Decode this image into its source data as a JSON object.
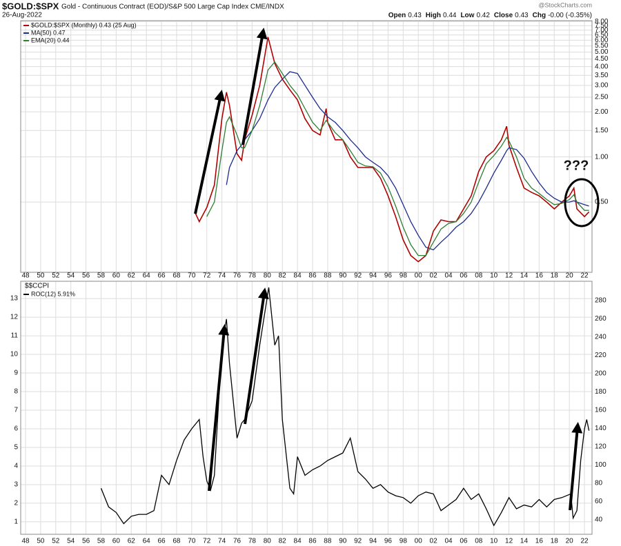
{
  "header": {
    "symbol": "$GOLD:$SPX",
    "description": "Gold - Continuous Contract (EOD)/S&P 500 Large Cap Index CME/INDX",
    "date": "26-Aug-2022",
    "watermark": "@StockCharts.com",
    "stats": [
      [
        "Open",
        "0.43"
      ],
      [
        "High",
        "0.44"
      ],
      [
        "Low",
        "0.42"
      ],
      [
        "Close",
        "0.43"
      ],
      [
        "Chg",
        "-0.00 (-0.35%)"
      ]
    ]
  },
  "chart_data": [
    {
      "type": "line",
      "log_y": true,
      "grid": true,
      "yaxis_side": "right",
      "annotation": "???",
      "xlim": [
        1947.36,
        2023.0
      ],
      "xticks": [
        {
          "value": 1948,
          "label": "48"
        },
        {
          "value": 1950,
          "label": "50"
        },
        {
          "value": 1952,
          "label": "52"
        },
        {
          "value": 1954,
          "label": "54"
        },
        {
          "value": 1956,
          "label": "56"
        },
        {
          "value": 1958,
          "label": "58"
        },
        {
          "value": 1960,
          "label": "60"
        },
        {
          "value": 1962,
          "label": "62"
        },
        {
          "value": 1964,
          "label": "64"
        },
        {
          "value": 1966,
          "label": "66"
        },
        {
          "value": 1968,
          "label": "68"
        },
        {
          "value": 1970,
          "label": "70"
        },
        {
          "value": 1972,
          "label": "72"
        },
        {
          "value": 1974,
          "label": "74"
        },
        {
          "value": 1976,
          "label": "76"
        },
        {
          "value": 1978,
          "label": "78"
        },
        {
          "value": 1980,
          "label": "80"
        },
        {
          "value": 1982,
          "label": "82"
        },
        {
          "value": 1984,
          "label": "84"
        },
        {
          "value": 1986,
          "label": "86"
        },
        {
          "value": 1988,
          "label": "88"
        },
        {
          "value": 1990,
          "label": "90"
        },
        {
          "value": 1992,
          "label": "92"
        },
        {
          "value": 1994,
          "label": "94"
        },
        {
          "value": 1996,
          "label": "96"
        },
        {
          "value": 1998,
          "label": "98"
        },
        {
          "value": 2000,
          "label": "00"
        },
        {
          "value": 2002,
          "label": "02"
        },
        {
          "value": 2004,
          "label": "04"
        },
        {
          "value": 2006,
          "label": "06"
        },
        {
          "value": 2008,
          "label": "08"
        },
        {
          "value": 2010,
          "label": "10"
        },
        {
          "value": 2012,
          "label": "12"
        },
        {
          "value": 2014,
          "label": "14"
        },
        {
          "value": 2016,
          "label": "16"
        },
        {
          "value": 2018,
          "label": "18"
        },
        {
          "value": 2020,
          "label": "20"
        },
        {
          "value": 2022,
          "label": "22"
        }
      ],
      "ylim": [
        0.17,
        8.1
      ],
      "yticks": [
        {
          "value": 8,
          "label": "8.00"
        },
        {
          "value": 7.5,
          "label": "7.50"
        },
        {
          "value": 7,
          "label": "7.00"
        },
        {
          "value": 6.5,
          "label": "6.50"
        },
        {
          "value": 6,
          "label": "6.00"
        },
        {
          "value": 5.5,
          "label": "5.50"
        },
        {
          "value": 5,
          "label": "5.00"
        },
        {
          "value": 4.5,
          "label": "4.50"
        },
        {
          "value": 4,
          "label": "4.00"
        },
        {
          "value": 3.5,
          "label": "3.50"
        },
        {
          "value": 3,
          "label": "3.00"
        },
        {
          "value": 2.5,
          "label": "2.50"
        },
        {
          "value": 2,
          "label": "2.00"
        },
        {
          "value": 1.5,
          "label": "1.50"
        },
        {
          "value": 1,
          "label": "1.00"
        },
        {
          "value": 0.5,
          "label": "0.50"
        }
      ],
      "x": [
        1970.5,
        1971,
        1972,
        1973,
        1974,
        1974.6,
        1975,
        1976,
        1976.6,
        1977,
        1978,
        1979,
        1980.1,
        1981,
        1982,
        1983,
        1984,
        1985,
        1986,
        1987,
        1987.8,
        1988,
        1989,
        1990,
        1991,
        1992,
        1993,
        1994,
        1995,
        1996,
        1997,
        1998,
        1999,
        2000,
        2001,
        2002,
        2003,
        2004,
        2005,
        2006,
        2007,
        2008,
        2009,
        2010,
        2011,
        2011.7,
        2012,
        2013,
        2014,
        2015,
        2016,
        2017,
        2018,
        2019,
        2020,
        2020.6,
        2021,
        2022,
        2022.6
      ],
      "series": [
        {
          "name": "$GOLD:$SPX (Monthly) 0.43 (25 Aug)",
          "color": "#b00000",
          "values": [
            0.42,
            0.37,
            0.46,
            0.65,
            1.8,
            2.7,
            2.2,
            1.05,
            0.95,
            1.3,
            1.9,
            3.0,
            6.3,
            4.2,
            3.3,
            2.8,
            2.4,
            1.8,
            1.5,
            1.4,
            2.1,
            1.7,
            1.3,
            1.3,
            1.0,
            0.85,
            0.85,
            0.85,
            0.72,
            0.55,
            0.4,
            0.28,
            0.22,
            0.2,
            0.22,
            0.32,
            0.38,
            0.37,
            0.37,
            0.45,
            0.55,
            0.8,
            1.0,
            1.1,
            1.3,
            1.6,
            1.2,
            0.85,
            0.62,
            0.58,
            0.55,
            0.5,
            0.45,
            0.5,
            0.55,
            0.62,
            0.45,
            0.4,
            0.43
          ]
        },
        {
          "name": "MA(50) 0.47",
          "color": "#1c2a8f",
          "values": [
            null,
            null,
            null,
            null,
            null,
            0.65,
            0.85,
            1.1,
            1.2,
            1.3,
            1.5,
            1.8,
            2.4,
            2.9,
            3.3,
            3.7,
            3.6,
            3.0,
            2.5,
            2.1,
            1.9,
            1.85,
            1.7,
            1.5,
            1.3,
            1.15,
            1.0,
            0.92,
            0.85,
            0.75,
            0.62,
            0.48,
            0.37,
            0.3,
            0.25,
            0.24,
            0.27,
            0.3,
            0.34,
            0.37,
            0.42,
            0.5,
            0.62,
            0.78,
            0.95,
            1.1,
            1.15,
            1.12,
            0.98,
            0.8,
            0.67,
            0.58,
            0.53,
            0.5,
            0.5,
            0.51,
            0.5,
            0.48,
            0.47
          ]
        },
        {
          "name": "EMA(20) 0.44",
          "color": "#2e7d32",
          "values": [
            null,
            null,
            0.4,
            0.5,
            1.1,
            1.7,
            1.85,
            1.4,
            1.15,
            1.15,
            1.5,
            2.2,
            3.8,
            4.3,
            3.6,
            3.0,
            2.6,
            2.1,
            1.7,
            1.5,
            1.75,
            1.7,
            1.45,
            1.3,
            1.1,
            0.92,
            0.87,
            0.86,
            0.78,
            0.63,
            0.47,
            0.34,
            0.26,
            0.22,
            0.22,
            0.27,
            0.33,
            0.36,
            0.37,
            0.42,
            0.5,
            0.68,
            0.9,
            1.02,
            1.18,
            1.35,
            1.28,
            1.0,
            0.72,
            0.62,
            0.57,
            0.52,
            0.48,
            0.49,
            0.52,
            0.56,
            0.5,
            0.44,
            0.44
          ]
        }
      ]
    },
    {
      "type": "line",
      "log_y": false,
      "grid": true,
      "yaxis_side": "left",
      "title": "$$CCPI",
      "xlim": [
        1947.36,
        2023.0
      ],
      "xticks": [
        {
          "value": 1948,
          "label": "48"
        },
        {
          "value": 1950,
          "label": "50"
        },
        {
          "value": 1952,
          "label": "52"
        },
        {
          "value": 1954,
          "label": "54"
        },
        {
          "value": 1956,
          "label": "56"
        },
        {
          "value": 1958,
          "label": "58"
        },
        {
          "value": 1960,
          "label": "60"
        },
        {
          "value": 1962,
          "label": "62"
        },
        {
          "value": 1964,
          "label": "64"
        },
        {
          "value": 1966,
          "label": "66"
        },
        {
          "value": 1968,
          "label": "68"
        },
        {
          "value": 1970,
          "label": "70"
        },
        {
          "value": 1972,
          "label": "72"
        },
        {
          "value": 1974,
          "label": "74"
        },
        {
          "value": 1976,
          "label": "76"
        },
        {
          "value": 1978,
          "label": "78"
        },
        {
          "value": 1980,
          "label": "80"
        },
        {
          "value": 1982,
          "label": "82"
        },
        {
          "value": 1984,
          "label": "84"
        },
        {
          "value": 1986,
          "label": "86"
        },
        {
          "value": 1988,
          "label": "88"
        },
        {
          "value": 1990,
          "label": "90"
        },
        {
          "value": 1992,
          "label": "92"
        },
        {
          "value": 1994,
          "label": "94"
        },
        {
          "value": 1996,
          "label": "96"
        },
        {
          "value": 1998,
          "label": "98"
        },
        {
          "value": 2000,
          "label": "00"
        },
        {
          "value": 2002,
          "label": "02"
        },
        {
          "value": 2004,
          "label": "04"
        },
        {
          "value": 2006,
          "label": "06"
        },
        {
          "value": 2008,
          "label": "08"
        },
        {
          "value": 2010,
          "label": "10"
        },
        {
          "value": 2012,
          "label": "12"
        },
        {
          "value": 2014,
          "label": "14"
        },
        {
          "value": 2016,
          "label": "16"
        },
        {
          "value": 2018,
          "label": "18"
        },
        {
          "value": 2020,
          "label": "20"
        },
        {
          "value": 2022,
          "label": "22"
        }
      ],
      "ylim": [
        0.33,
        13.93
      ],
      "yticks": [
        1,
        2,
        3,
        4,
        5,
        6,
        7,
        8,
        9,
        10,
        11,
        12,
        13
      ],
      "y2lim": [
        24,
        301
      ],
      "y2ticks": [
        40,
        60,
        80,
        100,
        120,
        140,
        160,
        180,
        200,
        220,
        240,
        260,
        280
      ],
      "x": [
        1958,
        1959,
        1960,
        1961,
        1962,
        1963,
        1964,
        1965,
        1966,
        1967,
        1968,
        1969,
        1970,
        1971,
        1971.5,
        1972,
        1972.5,
        1973,
        1974,
        1974.6,
        1975,
        1976,
        1976.6,
        1977,
        1978,
        1979,
        1980.2,
        1981,
        1981.5,
        1982,
        1983,
        1983.5,
        1984,
        1985,
        1986,
        1987,
        1988,
        1989,
        1990,
        1991,
        1992,
        1993,
        1994,
        1995,
        1996,
        1997,
        1998,
        1999,
        2000,
        2001,
        2002,
        2003,
        2004,
        2005,
        2006,
        2007,
        2008,
        2009,
        2010,
        2011,
        2012,
        2013,
        2014,
        2015,
        2016,
        2017,
        2018,
        2019,
        2020.2,
        2020.5,
        2021,
        2021.5,
        2022,
        2022.3,
        2022.6
      ],
      "series": [
        {
          "name": "ROC(12) 5.91%",
          "color": "#000000",
          "values": [
            2.8,
            1.8,
            1.5,
            0.9,
            1.3,
            1.4,
            1.4,
            1.6,
            3.5,
            3.0,
            4.3,
            5.4,
            6.0,
            6.5,
            4.5,
            3.2,
            2.7,
            3.5,
            10.5,
            11.9,
            9.5,
            5.5,
            6.3,
            6.5,
            7.5,
            10.5,
            13.6,
            10.5,
            11.0,
            6.5,
            2.8,
            2.5,
            4.5,
            3.5,
            3.8,
            4.0,
            4.3,
            4.5,
            4.7,
            5.5,
            3.7,
            3.3,
            2.8,
            3.0,
            2.6,
            2.4,
            2.3,
            2.0,
            2.4,
            2.6,
            2.5,
            1.6,
            1.9,
            2.2,
            2.8,
            2.2,
            2.5,
            1.7,
            0.8,
            1.5,
            2.3,
            1.7,
            1.9,
            1.8,
            2.2,
            1.8,
            2.2,
            2.3,
            2.5,
            1.2,
            1.6,
            4.3,
            6.0,
            6.5,
            5.9
          ]
        }
      ]
    }
  ]
}
